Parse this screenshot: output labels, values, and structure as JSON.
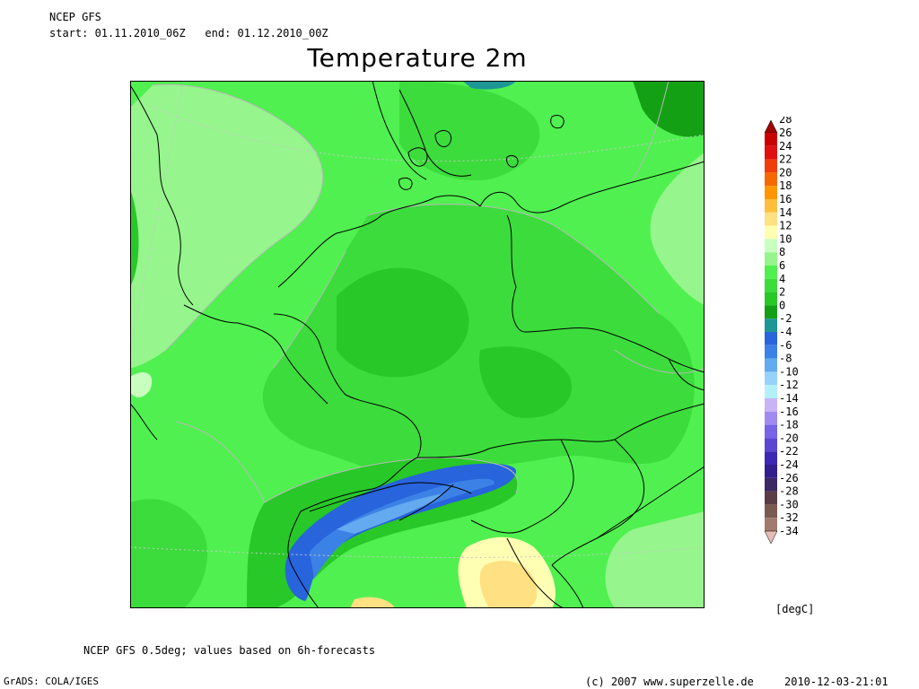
{
  "header": {
    "source": "NCEP GFS",
    "period": "start: 01.11.2010_06Z   end: 01.12.2010_00Z"
  },
  "title": "Temperature 2m",
  "legend": {
    "unit": "[degC]",
    "levels": [
      {
        "label": "28",
        "color": "#a00000"
      },
      {
        "label": "26",
        "color": "#c80000"
      },
      {
        "label": "24",
        "color": "#e01010"
      },
      {
        "label": "22",
        "color": "#f03c0a"
      },
      {
        "label": "20",
        "color": "#f56a00"
      },
      {
        "label": "18",
        "color": "#ff9600"
      },
      {
        "label": "16",
        "color": "#ffbe3c"
      },
      {
        "label": "14",
        "color": "#ffe082"
      },
      {
        "label": "12",
        "color": "#ffffb4"
      },
      {
        "label": "10",
        "color": "#c8ffbe"
      },
      {
        "label": "8",
        "color": "#96f58c"
      },
      {
        "label": "6",
        "color": "#50f050"
      },
      {
        "label": "4",
        "color": "#3cdc3c"
      },
      {
        "label": "2",
        "color": "#28c828"
      },
      {
        "label": "0",
        "color": "#14a014"
      },
      {
        "label": "-2",
        "color": "#1e9696"
      },
      {
        "label": "-4",
        "color": "#2864dc"
      },
      {
        "label": "-6",
        "color": "#3c82e6"
      },
      {
        "label": "-8",
        "color": "#64aaf0"
      },
      {
        "label": "-10",
        "color": "#96d2fa"
      },
      {
        "label": "-12",
        "color": "#b4f0fa"
      },
      {
        "label": "-14",
        "color": "#c8b4f5"
      },
      {
        "label": "-16",
        "color": "#a08cf0"
      },
      {
        "label": "-18",
        "color": "#7864e6"
      },
      {
        "label": "-20",
        "color": "#5a46d2"
      },
      {
        "label": "-22",
        "color": "#3c28b4"
      },
      {
        "label": "-24",
        "color": "#321e8c"
      },
      {
        "label": "-26",
        "color": "#3c2864"
      },
      {
        "label": "-28",
        "color": "#5a3c46"
      },
      {
        "label": "-30",
        "color": "#7a5a50"
      },
      {
        "label": "-32",
        "color": "#a07a6e"
      },
      {
        "label": "-34",
        "color": "#e6bcb4"
      }
    ]
  },
  "footer": {
    "note": "NCEP GFS 0.5deg; values based on 6h-forecasts",
    "grads": "GrADS: COLA/IGES",
    "copyright": "(c) 2007 www.superzelle.de",
    "timestamp": "2010-12-03-21:01"
  }
}
